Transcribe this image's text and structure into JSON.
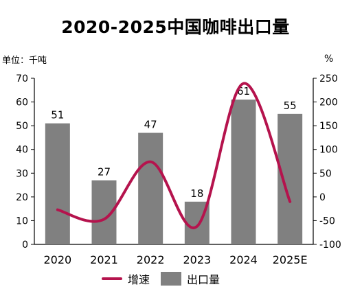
{
  "chart_data": {
    "type": "bar+line",
    "title": "2020-2025中国咖啡出口量",
    "left_axis_unit": "单位：千吨",
    "right_axis_unit": "%",
    "categories": [
      "2020",
      "2021",
      "2022",
      "2023",
      "2024",
      "2025E"
    ],
    "series": [
      {
        "name": "出口量",
        "type": "bar",
        "axis": "left",
        "values": [
          51,
          27,
          47,
          18,
          61,
          55
        ],
        "color": "#808080"
      },
      {
        "name": "增速",
        "type": "line",
        "axis": "right",
        "values": [
          -27,
          -47,
          74,
          -62,
          239,
          -10
        ],
        "color": "#b5134d"
      }
    ],
    "y_left": {
      "min": 0,
      "max": 70,
      "ticks": [
        "0",
        "10",
        "20",
        "30",
        "40",
        "50",
        "60",
        "70"
      ]
    },
    "y_right": {
      "min": -100,
      "max": 250,
      "ticks": [
        "-100",
        "-50",
        "0",
        "50",
        "100",
        "150",
        "200",
        "250"
      ]
    },
    "grid": false,
    "legend_position": "bottom",
    "data_labels": [
      "51",
      "27",
      "47",
      "18",
      "61",
      "55"
    ]
  }
}
